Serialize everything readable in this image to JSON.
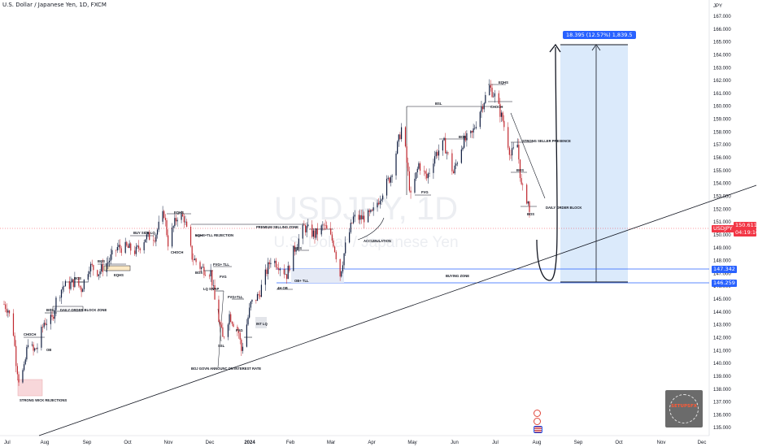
{
  "header": {
    "title": "U.S. Dollar / Japanese Yen, 1D, FXCM"
  },
  "watermark": {
    "symbol": "USDJPY, 1D",
    "name": "U.S. Dollar / Japanese Yen"
  },
  "price_axis": {
    "currency": "JPY",
    "ticks": [
      "167.000",
      "166.000",
      "165.000",
      "164.000",
      "163.000",
      "162.000",
      "161.000",
      "160.000",
      "159.000",
      "158.000",
      "157.000",
      "156.000",
      "155.000",
      "154.000",
      "153.000",
      "152.000",
      "151.000",
      "150.000",
      "149.000",
      "148.000",
      "147.000",
      "146.000",
      "145.000",
      "144.000",
      "143.000",
      "142.000",
      "141.000",
      "140.000",
      "139.000",
      "138.000",
      "137.000",
      "136.000",
      "135.000"
    ],
    "current_symbol_label": "USDJPY",
    "current_price": "150.611",
    "countdown": "04:19:16",
    "level_upper": "147.342",
    "level_lower": "146.259",
    "colors": {
      "current": "#f23645",
      "level": "#2962ff"
    }
  },
  "time_axis": {
    "ticks": [
      "Jul",
      "Aug",
      "Sep",
      "Oct",
      "Nov",
      "Dec",
      "2024",
      "Feb",
      "Mar",
      "Apr",
      "May",
      "Jun",
      "Jul",
      "Aug",
      "Sep",
      "Oct",
      "Nov",
      "Dec"
    ]
  },
  "measure": {
    "label": "18.395 (12.57%) 1,839.5"
  },
  "annotations": {
    "strong_wick": "STRONG WICK REJECTIONS",
    "choch_1": "CHOCH",
    "ob_1": "OB",
    "bos_1": "BOS",
    "daily_ob_zone": "DAILY ORDER BLOCK ZONE",
    "bos_2": "BOS",
    "bos_3": "BOS",
    "eqhs_1": "EQHS",
    "buy_side_lq": "BUY SIDE LQ",
    "eqhs_2": "EQHS",
    "eqhs_tll": "EQHS+TLL REJECTION",
    "choch_2": "CHOCH",
    "premium_zone": "PREMIUM SELLING ZONE",
    "bos_4": "BOS",
    "fvg_tll_1": "FVG+ TLL",
    "fvg_1": "FVG",
    "lq_swap": "LQ SWAP",
    "fvg_tll_2": "FVG+TLL",
    "fvg_2": "FVG",
    "ssl": "SSL",
    "int_lq": "INT LQ",
    "boj": "BOJ GOVN ANNOUNC ON INTEREST RATE",
    "bos_5": "BOS",
    "ob_tll": "OB+ TLL",
    "fourh_ob": "4H OB",
    "accumulation": "ACCUMULATION",
    "buying_zone": "BUYING ZONE",
    "bsl": "BSL",
    "fvg_3": "FVG",
    "bos_6": "BOS",
    "eqhs_3": "EQHS",
    "choch_3": "CHOCH",
    "strong_seller": "STRONG SELLER PRESENCE",
    "bos_7": "BOS",
    "daily_ob": "DAILY ORDER BLOCK",
    "bos_8": "BOS"
  },
  "logo": {
    "text": "SETUPSFX"
  },
  "chart_data": {
    "type": "candlestick",
    "symbol": "USDJPY",
    "timeframe": "1D",
    "colors": {
      "up": "#0d1b3e",
      "down": "#c0262d"
    },
    "closes": [
      {
        "t": "2023-07-03",
        "c": 144.6
      },
      {
        "t": "2023-07-06",
        "c": 144.2
      },
      {
        "t": "2023-07-10",
        "c": 142.4
      },
      {
        "t": "2023-07-12",
        "c": 140.2
      },
      {
        "t": "2023-07-14",
        "c": 138.8
      },
      {
        "t": "2023-07-18",
        "c": 139.5
      },
      {
        "t": "2023-07-21",
        "c": 141.8
      },
      {
        "t": "2023-07-25",
        "c": 140.9
      },
      {
        "t": "2023-07-28",
        "c": 141.3
      },
      {
        "t": "2023-08-02",
        "c": 143.2
      },
      {
        "t": "2023-08-08",
        "c": 143.4
      },
      {
        "t": "2023-08-11",
        "c": 144.9
      },
      {
        "t": "2023-08-16",
        "c": 146.0
      },
      {
        "t": "2023-08-21",
        "c": 146.1
      },
      {
        "t": "2023-08-25",
        "c": 146.4
      },
      {
        "t": "2023-08-30",
        "c": 145.8
      },
      {
        "t": "2023-09-05",
        "c": 147.6
      },
      {
        "t": "2023-09-12",
        "c": 147.1
      },
      {
        "t": "2023-09-19",
        "c": 147.9
      },
      {
        "t": "2023-09-26",
        "c": 149.0
      },
      {
        "t": "2023-10-03",
        "c": 149.0
      },
      {
        "t": "2023-10-10",
        "c": 148.7
      },
      {
        "t": "2023-10-17",
        "c": 149.8
      },
      {
        "t": "2023-10-24",
        "c": 149.9
      },
      {
        "t": "2023-10-31",
        "c": 151.7
      },
      {
        "t": "2023-11-03",
        "c": 149.4
      },
      {
        "t": "2023-11-10",
        "c": 151.5
      },
      {
        "t": "2023-11-15",
        "c": 151.3
      },
      {
        "t": "2023-11-21",
        "c": 148.3
      },
      {
        "t": "2023-11-28",
        "c": 147.4
      },
      {
        "t": "2023-12-05",
        "c": 147.1
      },
      {
        "t": "2023-12-08",
        "c": 144.9
      },
      {
        "t": "2023-12-14",
        "c": 141.9
      },
      {
        "t": "2023-12-19",
        "c": 143.8
      },
      {
        "t": "2023-12-26",
        "c": 142.4
      },
      {
        "t": "2023-12-28",
        "c": 141.0
      },
      {
        "t": "2024-01-04",
        "c": 144.6
      },
      {
        "t": "2024-01-10",
        "c": 145.3
      },
      {
        "t": "2024-01-16",
        "c": 147.2
      },
      {
        "t": "2024-01-19",
        "c": 148.1
      },
      {
        "t": "2024-01-25",
        "c": 147.7
      },
      {
        "t": "2024-01-31",
        "c": 146.9
      },
      {
        "t": "2024-02-05",
        "c": 148.7
      },
      {
        "t": "2024-02-13",
        "c": 150.6
      },
      {
        "t": "2024-02-21",
        "c": 150.0
      },
      {
        "t": "2024-02-28",
        "c": 150.7
      },
      {
        "t": "2024-03-06",
        "c": 149.4
      },
      {
        "t": "2024-03-11",
        "c": 146.9
      },
      {
        "t": "2024-03-15",
        "c": 149.1
      },
      {
        "t": "2024-03-21",
        "c": 151.3
      },
      {
        "t": "2024-03-28",
        "c": 151.3
      },
      {
        "t": "2024-04-04",
        "c": 151.6
      },
      {
        "t": "2024-04-11",
        "c": 153.2
      },
      {
        "t": "2024-04-18",
        "c": 154.6
      },
      {
        "t": "2024-04-26",
        "c": 158.3
      },
      {
        "t": "2024-04-29",
        "c": 156.5
      },
      {
        "t": "2024-05-03",
        "c": 152.9
      },
      {
        "t": "2024-05-09",
        "c": 155.5
      },
      {
        "t": "2024-05-15",
        "c": 154.4
      },
      {
        "t": "2024-05-21",
        "c": 156.2
      },
      {
        "t": "2024-05-28",
        "c": 157.1
      },
      {
        "t": "2024-06-04",
        "c": 154.8
      },
      {
        "t": "2024-06-11",
        "c": 157.2
      },
      {
        "t": "2024-06-18",
        "c": 157.8
      },
      {
        "t": "2024-06-24",
        "c": 159.7
      },
      {
        "t": "2024-07-01",
        "c": 161.5
      },
      {
        "t": "2024-07-05",
        "c": 160.8
      },
      {
        "t": "2024-07-11",
        "c": 158.9
      },
      {
        "t": "2024-07-17",
        "c": 156.2
      },
      {
        "t": "2024-07-22",
        "c": 157.0
      },
      {
        "t": "2024-07-25",
        "c": 153.7
      },
      {
        "t": "2024-07-30",
        "c": 152.6
      },
      {
        "t": "2024-08-01",
        "c": 150.6
      }
    ]
  }
}
